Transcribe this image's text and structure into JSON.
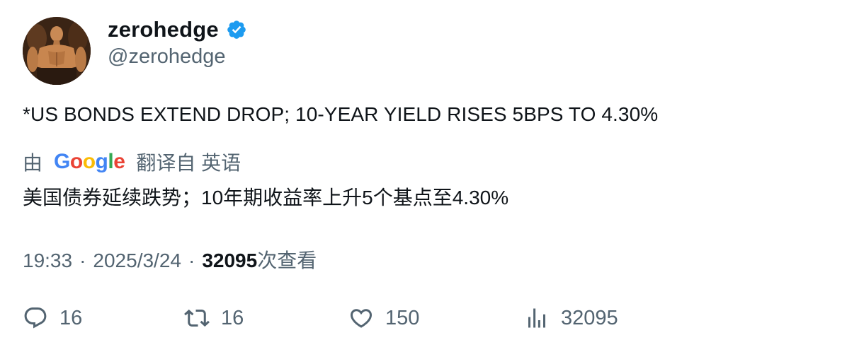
{
  "author": {
    "display_name": "zerohedge",
    "handle": "@zerohedge",
    "verified": true,
    "avatar_icon": "profile-photo",
    "verified_color": "#1d9bf0"
  },
  "tweet": {
    "text": "*US BONDS EXTEND DROP; 10-YEAR YIELD RISES 5BPS TO 4.30%"
  },
  "translation": {
    "prefix": "由",
    "provider_logo": [
      "G",
      "o",
      "o",
      "g",
      "l",
      "e"
    ],
    "suffix": "翻译自 英语",
    "text": "美国债券延续跌势；10年期收益率上升5个基点至4.30%"
  },
  "meta": {
    "time": "19:33",
    "separator": "·",
    "date": "2025/3/24",
    "views_count": "32095",
    "views_label": "次查看"
  },
  "actions": {
    "reply": {
      "icon": "reply-icon",
      "count": "16"
    },
    "retweet": {
      "icon": "retweet-icon",
      "count": "16"
    },
    "like": {
      "icon": "heart-icon",
      "count": "150"
    },
    "views": {
      "icon": "analytics-icon",
      "count": "32095"
    }
  },
  "colors": {
    "text_primary": "#0f1419",
    "text_secondary": "#536471"
  }
}
